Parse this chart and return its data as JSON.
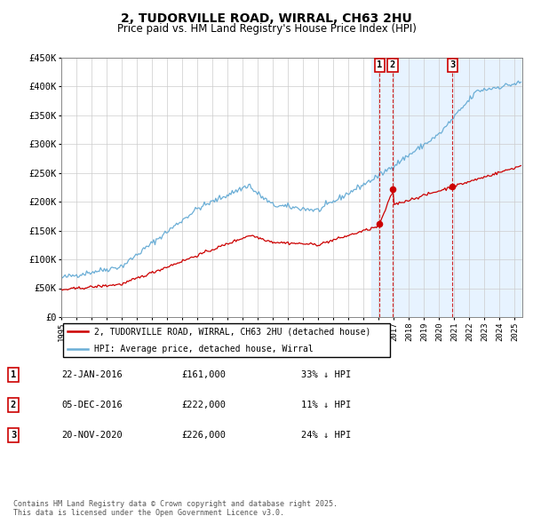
{
  "title": "2, TUDORVILLE ROAD, WIRRAL, CH63 2HU",
  "subtitle": "Price paid vs. HM Land Registry's House Price Index (HPI)",
  "hpi_color": "#6baed6",
  "price_color": "#cc0000",
  "bg_color": "#ddeeff",
  "ylim": [
    0,
    450000
  ],
  "yticks": [
    0,
    50000,
    100000,
    150000,
    200000,
    250000,
    300000,
    350000,
    400000,
    450000
  ],
  "ytick_labels": [
    "£0",
    "£50K",
    "£100K",
    "£150K",
    "£200K",
    "£250K",
    "£300K",
    "£350K",
    "£400K",
    "£450K"
  ],
  "xmin": 1995,
  "xmax": 2025.5,
  "transactions": [
    {
      "num": 1,
      "date": "22-JAN-2016",
      "price": 161000,
      "pct": "33%",
      "dir": "↓",
      "x_year": 2016.06
    },
    {
      "num": 2,
      "date": "05-DEC-2016",
      "price": 222000,
      "pct": "11%",
      "dir": "↓",
      "x_year": 2016.92
    },
    {
      "num": 3,
      "date": "20-NOV-2020",
      "price": 226000,
      "pct": "24%",
      "dir": "↓",
      "x_year": 2020.88
    }
  ],
  "legend_label_red": "2, TUDORVILLE ROAD, WIRRAL, CH63 2HU (detached house)",
  "legend_label_blue": "HPI: Average price, detached house, Wirral",
  "footer1": "Contains HM Land Registry data © Crown copyright and database right 2025.",
  "footer2": "This data is licensed under the Open Government Licence v3.0.",
  "shade_x_start": 2015.5,
  "tr_prices": [
    161000,
    222000,
    226000
  ]
}
